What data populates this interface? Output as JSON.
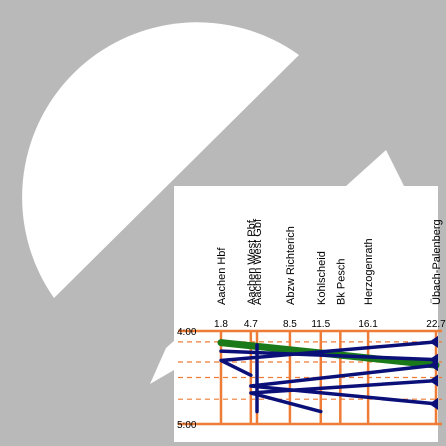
{
  "chart_data": {
    "type": "line",
    "title": "",
    "xlabel": "",
    "ylabel": "",
    "stations": [
      {
        "name": "Aachen Hbf",
        "km": 1.8,
        "km_label": "1.8"
      },
      {
        "name": "Aachen West Pbf",
        "km": 4.7,
        "km_label": "4.7"
      },
      {
        "name": "Aachen West Gbf",
        "km": 5.3,
        "km_label": ""
      },
      {
        "name": "Abzw Richterich",
        "km": 8.5,
        "km_label": "8.5"
      },
      {
        "name": "Kohlscheid",
        "km": 11.5,
        "km_label": "11.5"
      },
      {
        "name": "Bk Pesch",
        "km": 13.4,
        "km_label": ""
      },
      {
        "name": "Herzogenrath",
        "km": 16.1,
        "km_label": "16.1"
      },
      {
        "name": "Übach-Palenberg",
        "km": 22.7,
        "km_label": "22.7"
      }
    ],
    "time_ticks": [
      {
        "label": "4:00",
        "minutes": 240
      },
      {
        "label": "5:00",
        "minutes": 300
      }
    ],
    "xlim": [
      1.8,
      22.7
    ],
    "ylim_minutes": [
      240,
      300
    ],
    "grid": {
      "solid_minutes": [
        240,
        300
      ],
      "dashed_minutes": [
        247,
        260,
        270,
        284
      ]
    },
    "series": [
      {
        "color": "#1a7a1a",
        "points": [
          [
            1.8,
            247.5
          ],
          [
            22.7,
            262.0
          ]
        ]
      },
      {
        "color": "#0b1078",
        "points": [
          [
            22.7,
            247.0
          ],
          [
            1.8,
            259.0
          ],
          [
            4.7,
            268.5
          ]
        ]
      },
      {
        "color": "#0b1078",
        "points": [
          [
            1.8,
            253.0
          ],
          [
            22.7,
            258.5
          ]
        ]
      },
      {
        "color": "#0b1078",
        "points": [
          [
            22.7,
            262.0
          ],
          [
            4.7,
            275.5
          ],
          [
            22.7,
            287.0
          ]
        ]
      },
      {
        "color": "#0b1078",
        "points": [
          [
            22.7,
            272.0
          ],
          [
            4.7,
            280.0
          ],
          [
            11.5,
            292.0
          ]
        ]
      },
      {
        "color": "#0b1078",
        "points": [
          [
            5.3,
            249.0
          ],
          [
            5.3,
            292.0
          ]
        ]
      }
    ]
  },
  "colors": {
    "background": "#b9b9b9",
    "card": "#ffffff",
    "grid_orange": "#ee7c36",
    "green": "#1a7a1a",
    "navy": "#0b1078"
  }
}
